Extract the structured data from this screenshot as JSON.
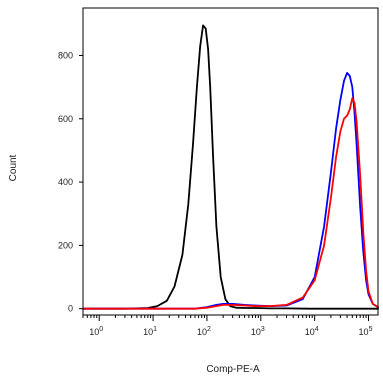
{
  "chart_data": {
    "type": "line",
    "xlabel": "Comp-PE-A",
    "ylabel": "Count",
    "x_scale": "log",
    "xlim": [
      0.5,
      150000
    ],
    "ylim": [
      -20,
      950
    ],
    "x_ticks": [
      {
        "value": 1,
        "base": "10",
        "exp": "0"
      },
      {
        "value": 10,
        "base": "10",
        "exp": "1"
      },
      {
        "value": 100,
        "base": "10",
        "exp": "2"
      },
      {
        "value": 1000,
        "base": "10",
        "exp": "3"
      },
      {
        "value": 10000,
        "base": "10",
        "exp": "4"
      },
      {
        "value": 100000,
        "base": "10",
        "exp": "5"
      }
    ],
    "y_ticks": [
      0,
      200,
      400,
      600,
      800
    ],
    "grid": false,
    "series": [
      {
        "color": "#000000",
        "x": [
          0.5,
          1,
          3,
          8,
          12,
          18,
          25,
          35,
          45,
          55,
          65,
          75,
          85,
          95,
          105,
          115,
          130,
          150,
          180,
          220,
          270,
          350,
          500,
          800,
          1500,
          3000,
          8000,
          20000,
          50000,
          100000,
          150000
        ],
        "y": [
          0,
          0,
          0,
          2,
          8,
          25,
          70,
          170,
          330,
          520,
          700,
          830,
          895,
          885,
          820,
          700,
          480,
          260,
          100,
          30,
          8,
          3,
          2,
          2,
          1,
          1,
          0,
          0,
          0,
          0,
          0
        ]
      },
      {
        "color": "#0000ff",
        "x": [
          0.5,
          10,
          60,
          100,
          150,
          200,
          300,
          500,
          800,
          1500,
          3000,
          6000,
          10000,
          15000,
          20000,
          25000,
          30000,
          35000,
          40000,
          45000,
          50000,
          55000,
          60000,
          70000,
          80000,
          90000,
          100000,
          120000,
          150000
        ],
        "y": [
          0,
          0,
          0,
          5,
          12,
          15,
          15,
          12,
          10,
          8,
          10,
          30,
          100,
          260,
          430,
          570,
          660,
          720,
          745,
          735,
          700,
          620,
          520,
          320,
          180,
          90,
          45,
          15,
          5
        ]
      },
      {
        "color": "#ff0000",
        "x": [
          0.5,
          10,
          60,
          100,
          150,
          200,
          300,
          500,
          800,
          1500,
          3000,
          6000,
          10000,
          15000,
          20000,
          25000,
          30000,
          35000,
          40000,
          45000,
          50000,
          55000,
          60000,
          70000,
          80000,
          90000,
          100000,
          120000,
          150000
        ],
        "y": [
          0,
          0,
          0,
          3,
          8,
          12,
          12,
          10,
          8,
          8,
          12,
          35,
          90,
          200,
          350,
          480,
          560,
          600,
          610,
          630,
          665,
          650,
          590,
          420,
          240,
          120,
          55,
          15,
          5
        ]
      }
    ]
  }
}
